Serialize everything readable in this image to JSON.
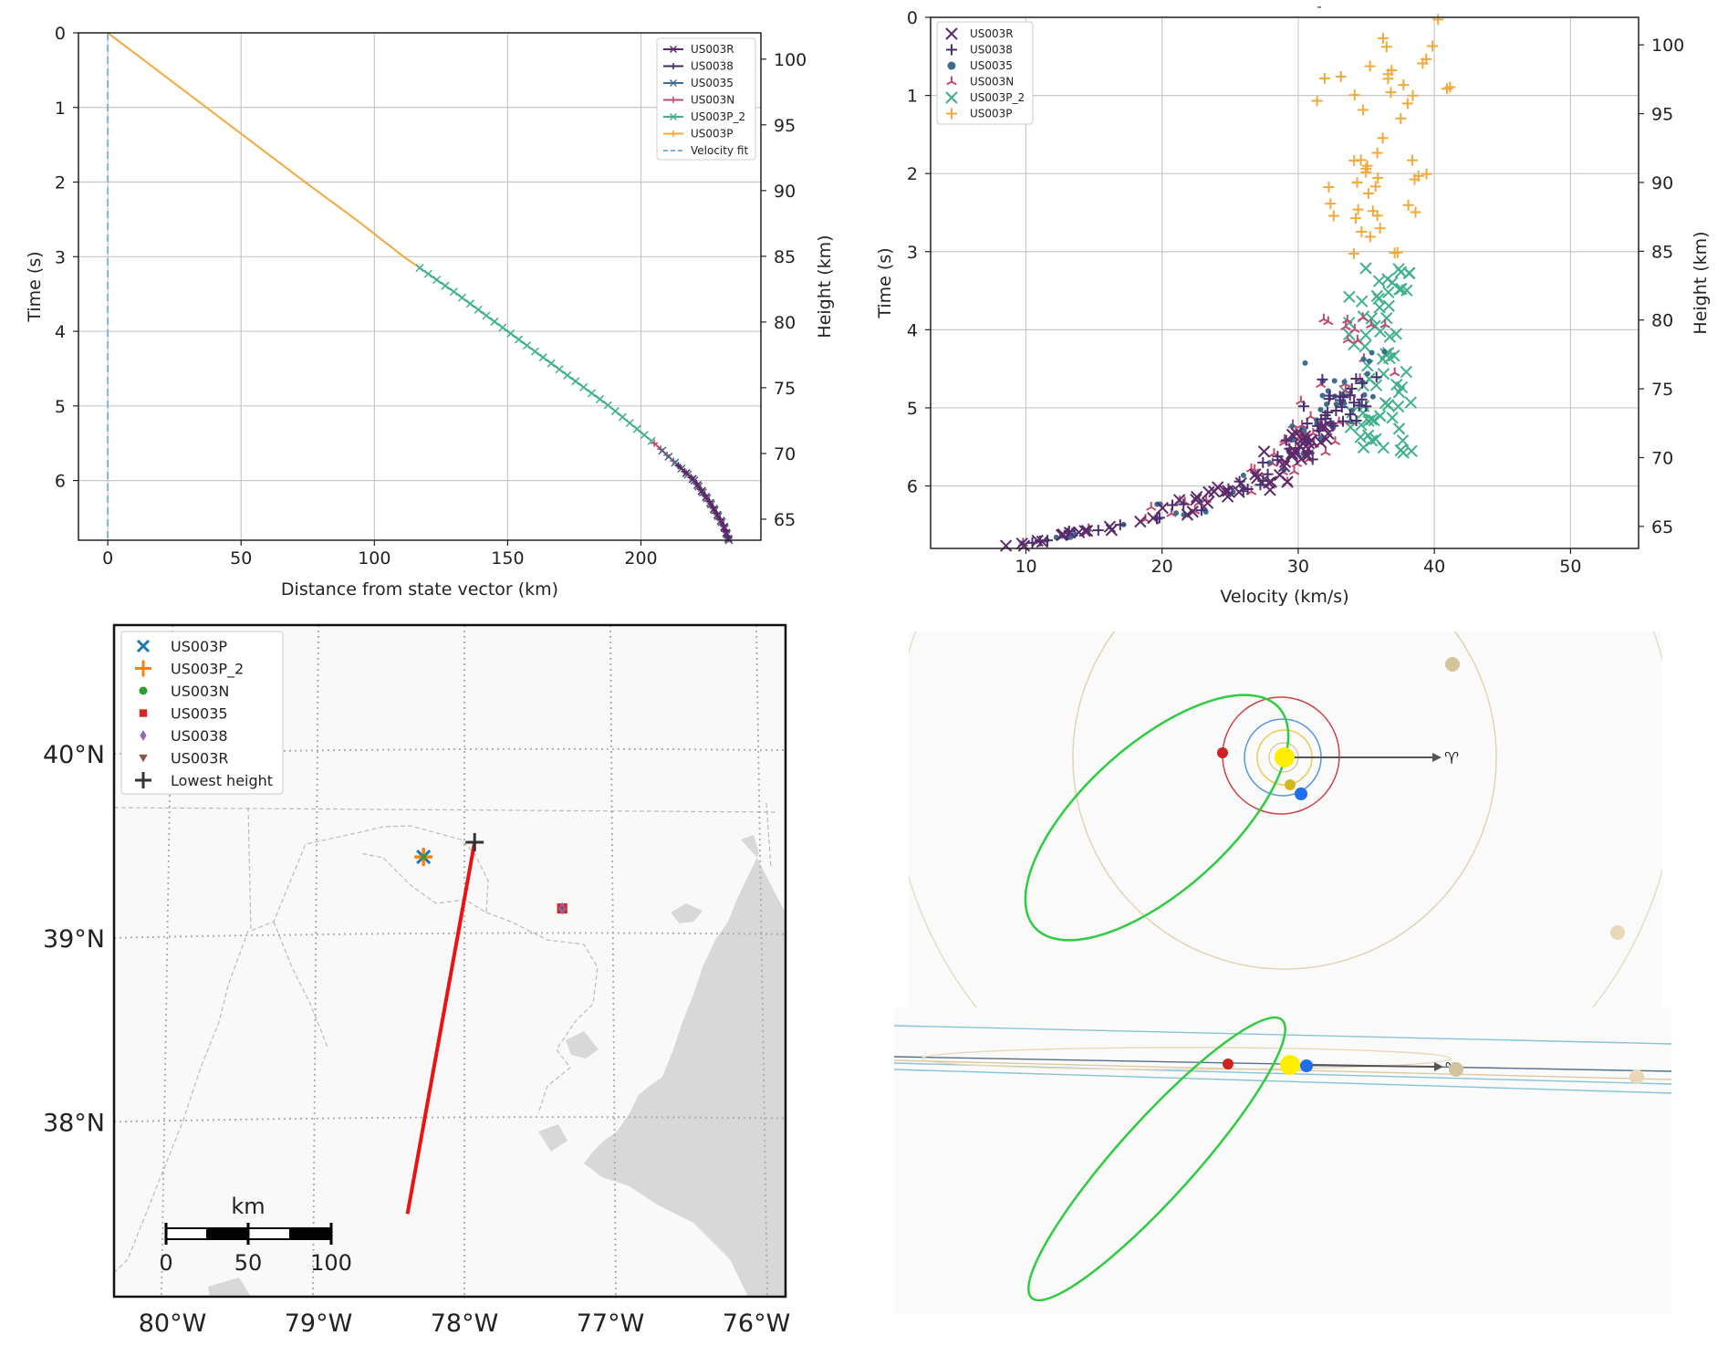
{
  "chart_data": [
    {
      "type": "line",
      "xlabel": "Distance from state vector (km)",
      "ylabel": "Time (s)",
      "y2label": "Height (km)",
      "xlim": [
        -11,
        245
      ],
      "ylim": [
        6.8,
        0
      ],
      "y2lim": [
        63.4,
        102
      ],
      "xticks": [
        "0",
        "50",
        "100",
        "150",
        "200"
      ],
      "yticks": [
        "0",
        "1",
        "2",
        "3",
        "4",
        "5",
        "6"
      ],
      "y2ticks": [
        "100",
        "95",
        "90",
        "85",
        "80",
        "75",
        "70",
        "65"
      ],
      "grid": true,
      "legend_position": "top-right",
      "series": [
        {
          "name": "US003R",
          "color": "#5c2a6b",
          "marker": "x",
          "t_range": [
            5.9,
            6.8
          ]
        },
        {
          "name": "US0038",
          "color": "#3c2a5c",
          "marker": "+",
          "t_range": [
            5.8,
            6.8
          ]
        },
        {
          "name": "US0035",
          "color": "#3e6e8c",
          "marker": "x",
          "t_range": [
            5.6,
            6.8
          ]
        },
        {
          "name": "US003N",
          "color": "#c24a6e",
          "marker": "+",
          "t_range": [
            5.5,
            6.8
          ]
        },
        {
          "name": "US003P_2",
          "color": "#3fb08a",
          "marker": "x",
          "t_range": [
            3.15,
            5.5
          ]
        },
        {
          "name": "US003P",
          "color": "#f2a93b",
          "marker": "+",
          "t_range": [
            0,
            3.15
          ]
        },
        {
          "name": "Velocity fit",
          "color": "#7fb3d5",
          "style": "dashed",
          "x": 0
        }
      ],
      "distance_curve": {
        "t": [
          0,
          0.5,
          1,
          1.5,
          2,
          2.5,
          3,
          3.5,
          4,
          4.5,
          5,
          5.5,
          6,
          6.3,
          6.6,
          6.8
        ],
        "x": [
          0,
          18.5,
          37,
          55.5,
          74,
          93,
          111,
          131,
          150,
          169,
          188,
          205,
          220,
          226,
          231,
          233
        ]
      }
    },
    {
      "type": "scatter",
      "xlabel": "Velocity (km/s)",
      "ylabel": "Time (s)",
      "y2label": "Height (km)",
      "title_fragment": "-",
      "xlim": [
        3,
        55
      ],
      "ylim": [
        6.8,
        0
      ],
      "y2lim": [
        63.4,
        102
      ],
      "xticks": [
        "10",
        "20",
        "30",
        "40",
        "50"
      ],
      "yticks": [
        "0",
        "1",
        "2",
        "3",
        "4",
        "5",
        "6"
      ],
      "y2ticks": [
        "100",
        "95",
        "90",
        "85",
        "80",
        "75",
        "70",
        "65"
      ],
      "grid": true,
      "legend_position": "top-left",
      "series": [
        {
          "name": "US003R",
          "color": "#5c2a6b",
          "marker": "x"
        },
        {
          "name": "US0038",
          "color": "#4a2f72",
          "marker": "+"
        },
        {
          "name": "US0035",
          "color": "#3e6e8c",
          "marker": "o"
        },
        {
          "name": "US003N",
          "color": "#c24a6e",
          "marker": "tri"
        },
        {
          "name": "US003P_2",
          "color": "#3fb08a",
          "marker": "x"
        },
        {
          "name": "US003P",
          "color": "#f2a93b",
          "marker": "+"
        }
      ]
    },
    {
      "type": "map",
      "xticks": [
        "80°W",
        "79°W",
        "78°W",
        "77°W",
        "76°W"
      ],
      "yticks": [
        "40°N",
        "39°N",
        "38°N"
      ],
      "lon_range": [
        -80.4,
        -75.8
      ],
      "lat_range": [
        37.05,
        40.7
      ],
      "legend_position": "top-left",
      "legend": [
        {
          "name": "US003P",
          "color": "#1f77b4",
          "marker": "x"
        },
        {
          "name": "US003P_2",
          "color": "#ff7f0e",
          "marker": "+"
        },
        {
          "name": "US003N",
          "color": "#2ca02c",
          "marker": "o"
        },
        {
          "name": "US0035",
          "color": "#d62728",
          "marker": "s"
        },
        {
          "name": "US0038",
          "color": "#9467bd",
          "marker": "d"
        },
        {
          "name": "US003R",
          "color": "#8c564b",
          "marker": "v"
        },
        {
          "name": "Lowest height",
          "color": "#333333",
          "marker": "+"
        }
      ],
      "stations": [
        {
          "lon": -78.28,
          "lat": 39.44,
          "names": [
            "US003P",
            "US003P_2",
            "US003N"
          ]
        },
        {
          "lon": -77.33,
          "lat": 39.16,
          "names": [
            "US0035",
            "US0038",
            "US003R"
          ]
        }
      ],
      "lowest_height": {
        "lon": -77.93,
        "lat": 39.52
      },
      "trajectory": {
        "start": [
          -78.39,
          37.5
        ],
        "end": [
          -77.93,
          39.52
        ],
        "color": "#ee1111"
      },
      "scale_bar": {
        "unit": "km",
        "labels": [
          "0",
          "50",
          "100"
        ]
      }
    },
    {
      "type": "orbit",
      "vernal_symbol": "♈",
      "colors": {
        "meteoroid_orbit": "#2ecc40",
        "earth": "#1e6fe8",
        "mars": "#cc2222",
        "sun": "#ffee00"
      }
    }
  ]
}
